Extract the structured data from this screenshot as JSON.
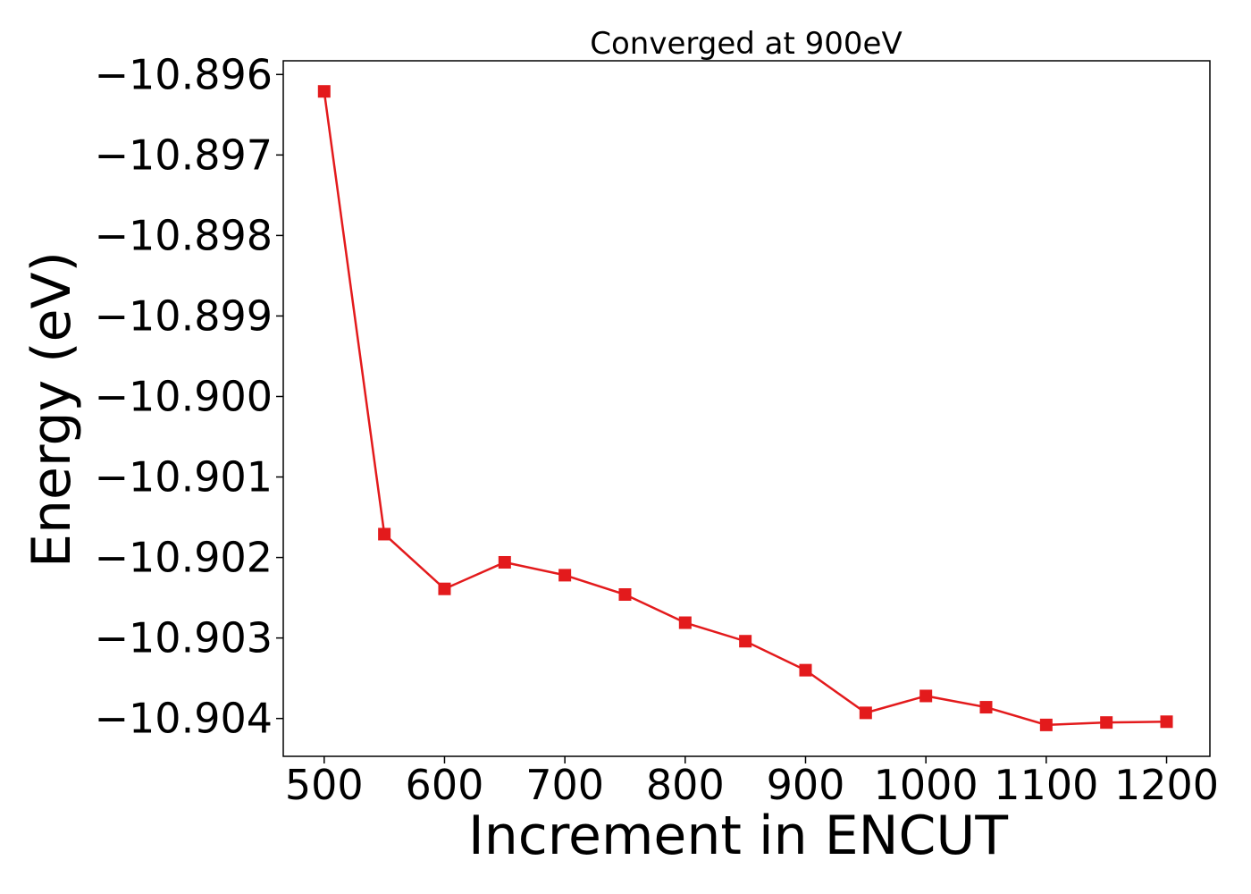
{
  "chart_data": {
    "type": "line",
    "title": "Converged at 900eV",
    "xlabel": "Increment in ENCUT",
    "ylabel": "Energy (eV)",
    "xlim": [
      466,
      1236
    ],
    "ylim": [
      -10.90447,
      -10.89583
    ],
    "xticks": [
      500,
      600,
      700,
      800,
      900,
      1000,
      1100,
      1200
    ],
    "yticks": [
      -10.896,
      -10.897,
      -10.898,
      -10.899,
      -10.9,
      -10.901,
      -10.902,
      -10.903,
      -10.904
    ],
    "ytick_labels": [
      "−10.896",
      "−10.897",
      "−10.898",
      "−10.899",
      "−10.900",
      "−10.901",
      "−10.902",
      "−10.903",
      "−10.904"
    ],
    "grid": false,
    "series": [
      {
        "color": "#e31a1c",
        "marker": "square",
        "x": [
          500,
          550,
          600,
          650,
          700,
          750,
          800,
          850,
          900,
          950,
          1000,
          1050,
          1100,
          1150,
          1200
        ],
        "y": [
          -10.89621,
          -10.90171,
          -10.90239,
          -10.90206,
          -10.90222,
          -10.90246,
          -10.90281,
          -10.90304,
          -10.9034,
          -10.90393,
          -10.90372,
          -10.90386,
          -10.90408,
          -10.90405,
          -10.90404
        ]
      }
    ]
  }
}
